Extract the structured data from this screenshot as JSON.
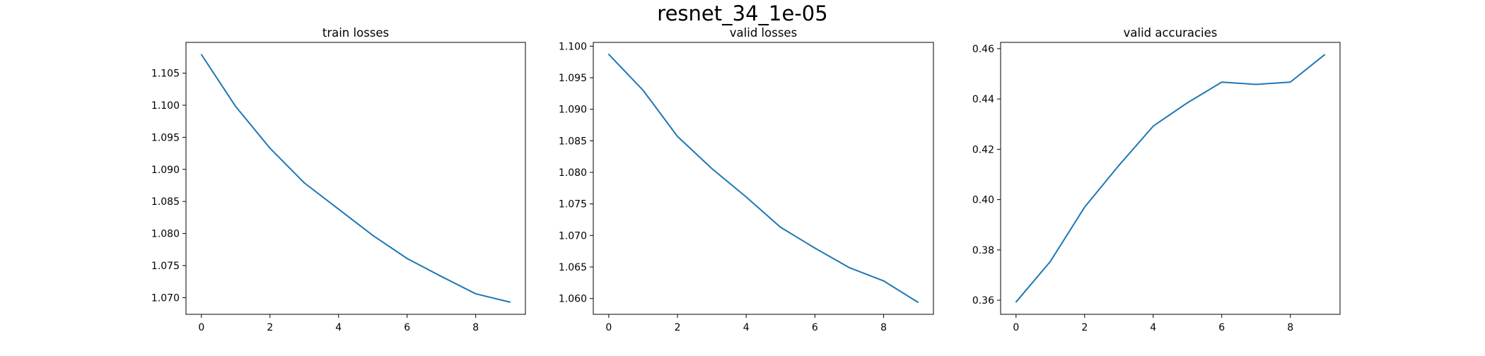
{
  "figure": {
    "title": "resnet_34_1e-05",
    "line_color": "#1f77b4"
  },
  "chart_data": [
    {
      "type": "line",
      "title": "train losses",
      "xlabel": "",
      "ylabel": "",
      "x": [
        0,
        1,
        2,
        3,
        4,
        5,
        6,
        7,
        8,
        9
      ],
      "series": [
        {
          "values": [
            1.1079,
            1.0998,
            1.0933,
            1.0879,
            1.0838,
            1.0797,
            1.0761,
            1.0733,
            1.0706,
            1.0693
          ]
        }
      ],
      "xlim": [
        -0.45,
        9.45
      ],
      "ylim": [
        1.0674,
        1.1098
      ],
      "xticks": [
        0,
        2,
        4,
        6,
        8
      ],
      "xtick_labels": [
        "0",
        "2",
        "4",
        "6",
        "8"
      ],
      "yticks": [
        1.07,
        1.075,
        1.08,
        1.085,
        1.09,
        1.095,
        1.1,
        1.105
      ],
      "ytick_labels": [
        "1.070",
        "1.075",
        "1.080",
        "1.085",
        "1.090",
        "1.095",
        "1.100",
        "1.105"
      ],
      "grid": false,
      "legend": "none"
    },
    {
      "type": "line",
      "title": "valid losses",
      "xlabel": "",
      "ylabel": "",
      "x": [
        0,
        1,
        2,
        3,
        4,
        5,
        6,
        7,
        8,
        9
      ],
      "series": [
        {
          "values": [
            1.0987,
            1.093,
            1.0857,
            1.0806,
            1.0761,
            1.0713,
            1.068,
            1.0649,
            1.0628,
            1.0594
          ]
        }
      ],
      "xlim": [
        -0.45,
        9.45
      ],
      "ylim": [
        1.0575,
        1.1006
      ],
      "xticks": [
        0,
        2,
        4,
        6,
        8
      ],
      "xtick_labels": [
        "0",
        "2",
        "4",
        "6",
        "8"
      ],
      "yticks": [
        1.06,
        1.065,
        1.07,
        1.075,
        1.08,
        1.085,
        1.09,
        1.095,
        1.1
      ],
      "ytick_labels": [
        "1.060",
        "1.065",
        "1.070",
        "1.075",
        "1.080",
        "1.085",
        "1.090",
        "1.095",
        "1.100"
      ],
      "grid": false,
      "legend": "none"
    },
    {
      "type": "line",
      "title": "valid accuracies",
      "xlabel": "",
      "ylabel": "",
      "x": [
        0,
        1,
        2,
        3,
        4,
        5,
        6,
        7,
        8,
        9
      ],
      "series": [
        {
          "values": [
            0.3593,
            0.3754,
            0.397,
            0.4136,
            0.4292,
            0.4385,
            0.4467,
            0.4458,
            0.4467,
            0.4576
          ]
        }
      ],
      "xlim": [
        -0.45,
        9.45
      ],
      "ylim": [
        0.3544,
        0.4625
      ],
      "xticks": [
        0,
        2,
        4,
        6,
        8
      ],
      "xtick_labels": [
        "0",
        "2",
        "4",
        "6",
        "8"
      ],
      "yticks": [
        0.36,
        0.38,
        0.4,
        0.42,
        0.44,
        0.46
      ],
      "ytick_labels": [
        "0.36",
        "0.38",
        "0.40",
        "0.42",
        "0.44",
        "0.46"
      ],
      "grid": false,
      "legend": "none"
    }
  ]
}
